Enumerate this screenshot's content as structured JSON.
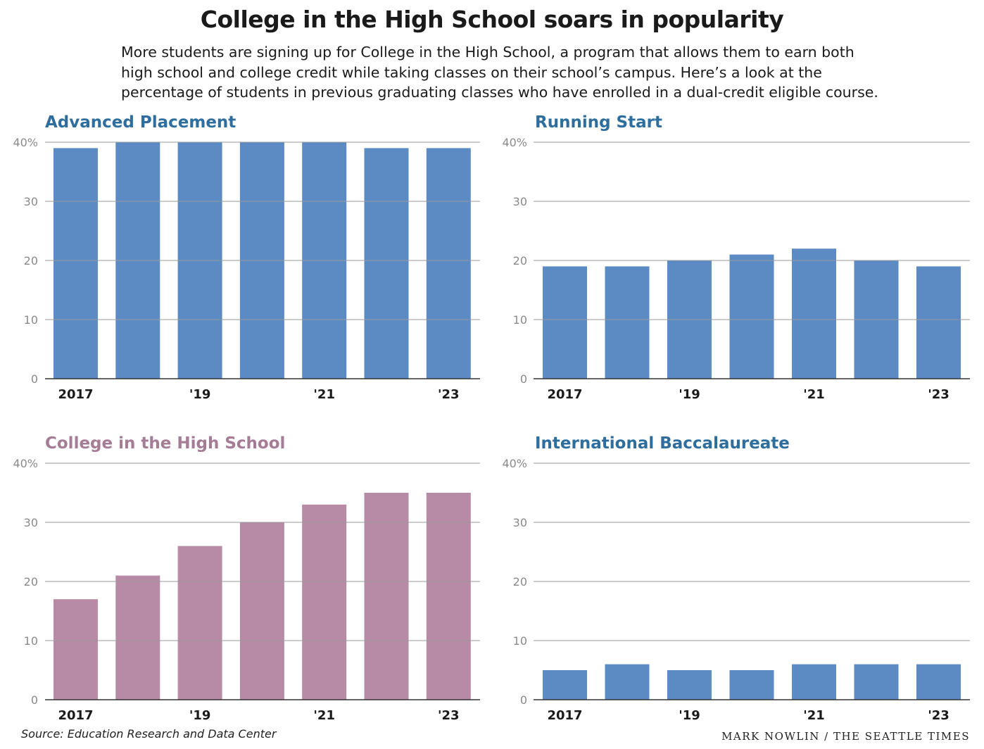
{
  "title": "College in the High School soars in popularity",
  "subtitle_lines": [
    "More students are signing up for College in the High School, a program that allows them to earn both",
    "high school and college credit while taking classes on their school’s campus. Here’s a look at the",
    "percentage of students in previous graduating classes who have enrolled in a dual-credit eligible course."
  ],
  "footer": {
    "source": "Source: Education Research and Data Center",
    "credit": "MARK NOWLIN / THE SEATTLE TIMES"
  },
  "colors": {
    "blue_bar": "#5b8bc2",
    "mauve_bar": "#b78ba5",
    "blue_title": "#2d6e9e",
    "mauve_title": "#a57c96",
    "grid": "#9a9a9a",
    "tick": "#8a8a8a"
  },
  "chart_data": [
    {
      "type": "bar",
      "title": "Advanced Placement",
      "color": "blue",
      "years": [
        2017,
        2018,
        2019,
        2020,
        2021,
        2022,
        2023
      ],
      "x_tick_labels": [
        "2017",
        "",
        "'19",
        "",
        "'21",
        "",
        "'23"
      ],
      "values": [
        39,
        40,
        40,
        40,
        40,
        39,
        39
      ],
      "y_ticks": [
        "0",
        "10",
        "20",
        "30",
        "40%"
      ],
      "ylim": [
        0,
        40
      ]
    },
    {
      "type": "bar",
      "title": "Running Start",
      "color": "blue",
      "years": [
        2017,
        2018,
        2019,
        2020,
        2021,
        2022,
        2023
      ],
      "x_tick_labels": [
        "2017",
        "",
        "'19",
        "",
        "'21",
        "",
        "'23"
      ],
      "values": [
        19,
        19,
        20,
        21,
        22,
        20,
        19
      ],
      "y_ticks": [
        "0",
        "10",
        "20",
        "30",
        "40%"
      ],
      "ylim": [
        0,
        40
      ]
    },
    {
      "type": "bar",
      "title": "College in the High School",
      "color": "mauve",
      "years": [
        2017,
        2018,
        2019,
        2020,
        2021,
        2022,
        2023
      ],
      "x_tick_labels": [
        "2017",
        "",
        "'19",
        "",
        "'21",
        "",
        "'23"
      ],
      "values": [
        17,
        21,
        26,
        30,
        33,
        35,
        35
      ],
      "y_ticks": [
        "0",
        "10",
        "20",
        "30",
        "40%"
      ],
      "ylim": [
        0,
        40
      ]
    },
    {
      "type": "bar",
      "title": "International Baccalaureate",
      "color": "blue",
      "years": [
        2017,
        2018,
        2019,
        2020,
        2021,
        2022,
        2023
      ],
      "x_tick_labels": [
        "2017",
        "",
        "'19",
        "",
        "'21",
        "",
        "'23"
      ],
      "values": [
        5,
        6,
        5,
        5,
        6,
        6,
        6
      ],
      "y_ticks": [
        "0",
        "10",
        "20",
        "30",
        "40%"
      ],
      "ylim": [
        0,
        40
      ]
    }
  ]
}
